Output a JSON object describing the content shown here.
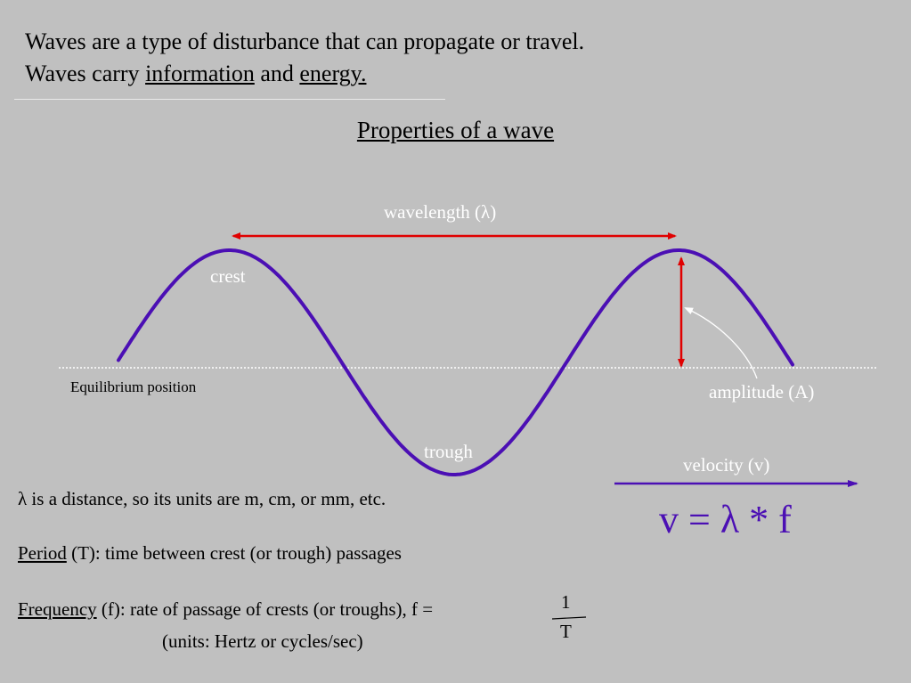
{
  "intro": {
    "line1": "Waves are a type of disturbance that can propagate or travel.",
    "line2_prefix": "Waves carry ",
    "line2_link1": "information",
    "line2_mid": " and ",
    "line2_link2": "energy."
  },
  "title": "Properties of a wave",
  "diagram": {
    "wavelength_label": "wavelength (λ)",
    "crest_label": "crest",
    "trough_label": "trough",
    "equilibrium_label": "Equilibrium position",
    "amplitude_label": "amplitude (A)",
    "velocity_label": "velocity (v)",
    "colors": {
      "wave": "#4b0fb4",
      "arrow": "#e00000",
      "velocity": "#4b0fb4",
      "label": "#ffffff"
    }
  },
  "formula": "v = λ * f",
  "notes": {
    "lambda_units": "λ is a distance, so its units are m, cm, or mm,  etc.",
    "period_term": "Period",
    "period_rest": " (T): time between crest (or trough) passages",
    "frequency_term": "Frequency",
    "frequency_rest": " (f): rate of passage of crests (or troughs),   f =",
    "frac_num": "1",
    "frac_den": "T",
    "units": "(units: Hertz or cycles/sec)"
  }
}
